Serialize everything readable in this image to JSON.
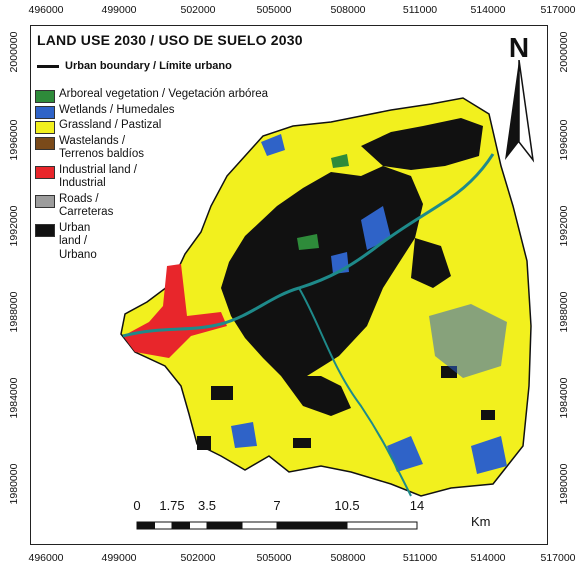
{
  "map": {
    "title": "LAND USE 2030 / USO DE SUELO 2030",
    "boundary_label": "Urban boundary / Límite urbano",
    "north_label": "N"
  },
  "legend": [
    {
      "label": "Arboreal vegetation / Vegetación arbórea",
      "color": "#2e8b3a"
    },
    {
      "label": "Wetlands / Humedales",
      "color": "#2f63c8"
    },
    {
      "label": "Grassland / Pastizal",
      "color": "#f2f01e"
    },
    {
      "label": "Wastelands / Terrenos baldíos",
      "color": "#7a4a1a"
    },
    {
      "label": "Industrial land / Industrial",
      "color": "#e8262b"
    },
    {
      "label": "Roads / Carreteras",
      "color": "#9c9c9c"
    },
    {
      "label": "Urban land / Urbano",
      "color": "#111111"
    }
  ],
  "coords": {
    "x_labels": [
      "496000",
      "499000",
      "502000",
      "505000",
      "508000",
      "511000",
      "514000",
      "517000"
    ],
    "y_labels": [
      "2000000",
      "1996000",
      "1992000",
      "1988000",
      "1984000",
      "1980000"
    ]
  },
  "scale": {
    "ticks": [
      "0",
      "1.75",
      "3.5",
      "7",
      "10.5",
      "14"
    ],
    "unit": "Km"
  }
}
